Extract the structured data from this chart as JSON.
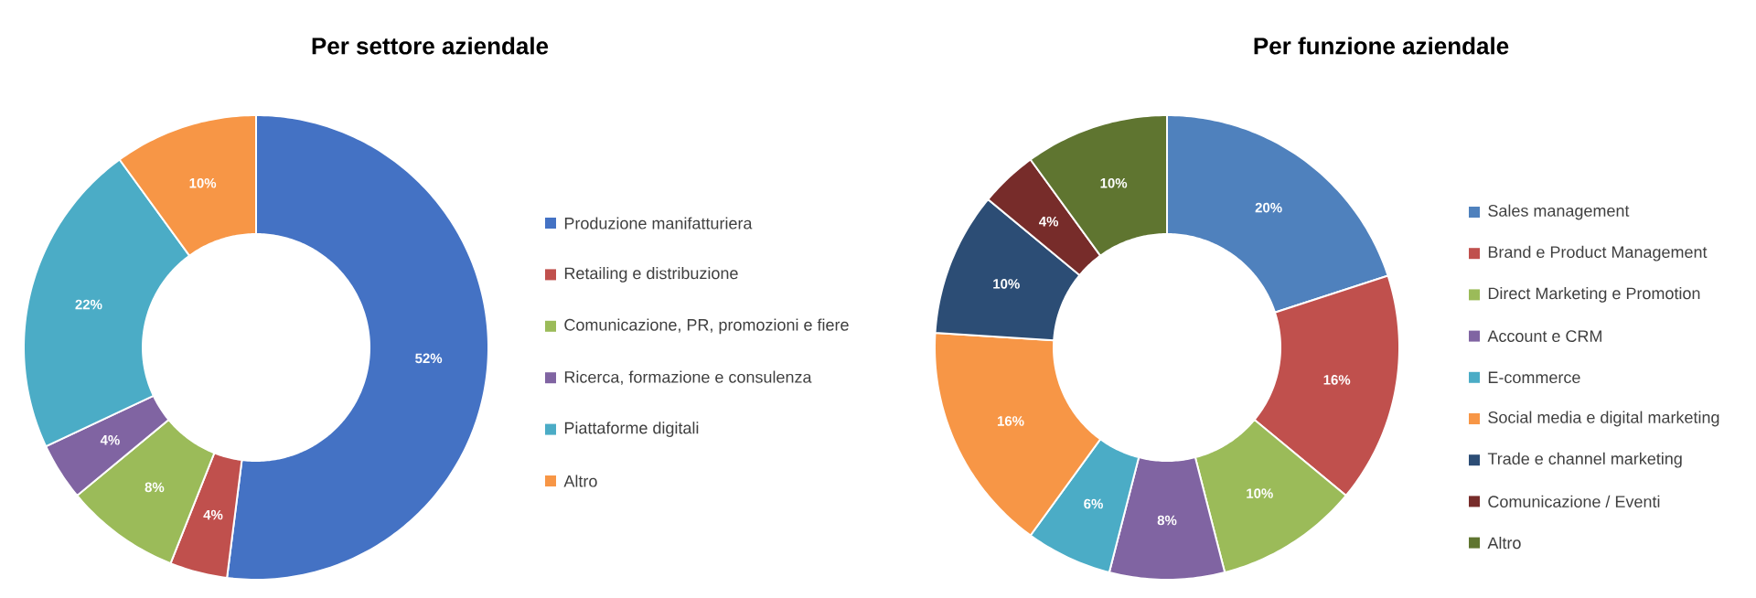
{
  "chart_data": [
    {
      "type": "donut",
      "title": "Per settore aziendale",
      "legend": "right",
      "categories": [
        "Produzione manifatturiera",
        "Retailing e distribuzione",
        "Comunicazione, PR, promozioni e fiere",
        "Ricerca, formazione e consulenza",
        "Piattaforme digitali",
        "Altro"
      ],
      "values": [
        52,
        4,
        8,
        4,
        22,
        10
      ],
      "value_labels": [
        "52%",
        "4%",
        "8%",
        "4%",
        "22%",
        "10%"
      ],
      "colors": [
        "#4472c4",
        "#c0504d",
        "#9bbb59",
        "#8064a2",
        "#4bacc6",
        "#f79646"
      ]
    },
    {
      "type": "donut",
      "title": "Per funzione aziendale",
      "legend": "right",
      "categories": [
        "Sales management",
        "Brand e Product Management",
        "Direct Marketing e Promotion",
        "Account e CRM",
        "E-commerce",
        "Social media e digital marketing",
        "Trade e channel marketing",
        "Comunicazione / Eventi",
        "Altro"
      ],
      "values": [
        20,
        16,
        10,
        8,
        6,
        16,
        10,
        4,
        10
      ],
      "value_labels": [
        "20%",
        "16%",
        "10%",
        "8%",
        "6%",
        "16%",
        "10%",
        "4%",
        "10%"
      ],
      "colors": [
        "#4f81bd",
        "#c0504d",
        "#9bbb59",
        "#8064a2",
        "#4bacc6",
        "#f79646",
        "#2c4d75",
        "#772c2a",
        "#5f7530"
      ]
    }
  ]
}
